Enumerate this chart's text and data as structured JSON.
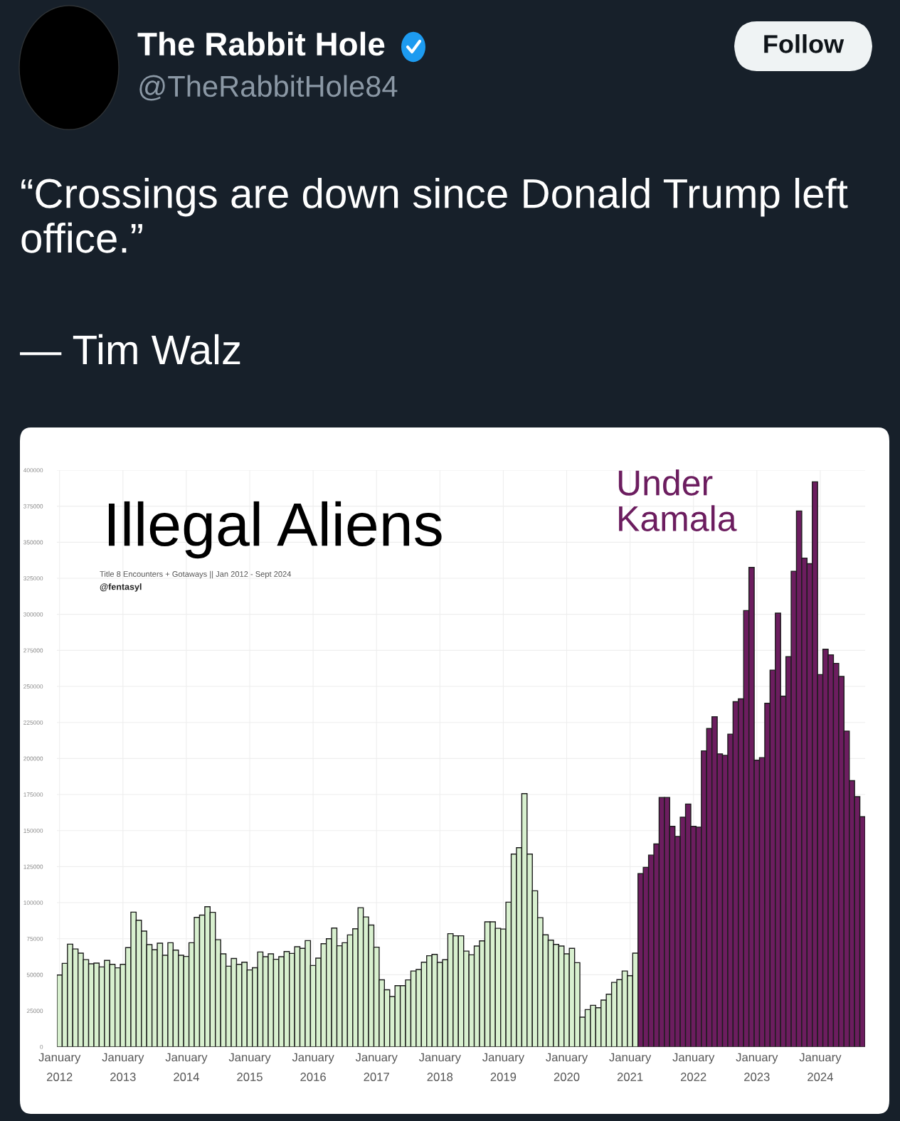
{
  "chart_data": {
    "type": "bar",
    "title": "Illegal Aliens",
    "subtitle": "Title 8 Encounters + Gotaways || Jan 2012 - Sept 2024",
    "annotations": [
      "“Crossings are down since Donald Trump left office.”",
      "— Tim Walz",
      "@fentasyl",
      "Under\nKamala",
      "The Rabbit Hole",
      "@TheRabbitHole84",
      "Follow"
    ],
    "categories": [
      "January\n2012",
      null,
      null,
      null,
      null,
      null,
      null,
      null,
      null,
      null,
      null,
      null,
      "January\n2013",
      null,
      null,
      null,
      null,
      null,
      null,
      null,
      null,
      null,
      null,
      null,
      "January\n2014",
      null,
      null,
      null,
      null,
      null,
      null,
      null,
      null,
      null,
      null,
      null,
      "January\n2015",
      null,
      null,
      null,
      null,
      null,
      null,
      null,
      null,
      null,
      null,
      null,
      "January\n2016",
      null,
      null,
      null,
      null,
      null,
      null,
      null,
      null,
      null,
      null,
      null,
      "January\n2017",
      null,
      null,
      null,
      null,
      null,
      null,
      null,
      null,
      null,
      null,
      null,
      "January\n2018",
      null,
      null,
      null,
      null,
      null,
      null,
      null,
      null,
      null,
      null,
      null,
      "January\n2019",
      null,
      null,
      null,
      null,
      null,
      null,
      null,
      null,
      null,
      null,
      null,
      "January\n2020",
      null,
      null,
      null,
      null,
      null,
      null,
      null,
      null,
      null,
      null,
      null,
      "January\n2021",
      null,
      null,
      null,
      null,
      null,
      null,
      null,
      null,
      null,
      null,
      null,
      "January\n2022",
      null,
      null,
      null,
      null,
      null,
      null,
      null,
      null,
      null,
      null,
      null,
      "January\n2023",
      null,
      null,
      null,
      null,
      null,
      null,
      null,
      null,
      null,
      null,
      null,
      "January\n2024",
      null,
      null,
      null,
      null,
      null,
      null,
      null,
      null
    ],
    "series": [
      {
        "color": "#d8f0cf",
        "values": [
          49800,
          57900,
          71200,
          67900,
          65000,
          60500,
          57600,
          58100,
          55400,
          59900,
          57200,
          54800,
          57200,
          68800,
          93400,
          87800,
          80300,
          70900,
          67300,
          71900,
          63500,
          72200,
          67100,
          63500,
          62700,
          72200,
          89800,
          91400,
          97200,
          93300,
          74300,
          64500,
          55900,
          61300,
          57200,
          58700,
          53300,
          54900,
          65800,
          62500,
          64500,
          60700,
          62500,
          66100,
          64800,
          69400,
          68300,
          73700,
          56400,
          61500,
          71500,
          75000,
          82400,
          70100,
          72200,
          77600,
          81900,
          96500,
          90100,
          84500,
          69100,
          46500,
          39600,
          34900,
          42400,
          42400,
          46400,
          52600,
          53600,
          58700,
          63200,
          64100,
          58600,
          60400,
          78500,
          77000,
          77000,
          66400,
          63800,
          69900,
          73500,
          86700,
          86700,
          82200,
          81700,
          100300,
          133700,
          138100,
          175600,
          133700,
          108200,
          89600,
          77700,
          74000,
          71000,
          69900,
          64500,
          68300,
          58400,
          20600,
          25800,
          28800,
          27100,
          32400,
          36500,
          44700,
          46600,
          52600,
          49300,
          65000,
          null,
          null,
          null,
          null,
          null,
          null,
          null,
          null,
          null,
          null,
          null,
          null,
          null,
          null,
          null,
          null,
          null,
          null,
          null,
          null,
          null,
          null,
          null,
          null,
          null,
          null,
          null,
          null,
          null,
          null,
          null,
          null,
          null,
          null,
          null,
          null,
          null,
          null,
          null,
          null,
          null,
          null,
          null
        ]
      },
      {
        "color": "#6c1d5f",
        "values": [
          null,
          null,
          null,
          null,
          null,
          null,
          null,
          null,
          null,
          null,
          null,
          null,
          null,
          null,
          null,
          null,
          null,
          null,
          null,
          null,
          null,
          null,
          null,
          null,
          null,
          null,
          null,
          null,
          null,
          null,
          null,
          null,
          null,
          null,
          null,
          null,
          null,
          null,
          null,
          null,
          null,
          null,
          null,
          null,
          null,
          null,
          null,
          null,
          null,
          null,
          null,
          null,
          null,
          null,
          null,
          null,
          null,
          null,
          null,
          null,
          null,
          null,
          null,
          null,
          null,
          null,
          null,
          null,
          null,
          null,
          null,
          null,
          null,
          null,
          null,
          null,
          null,
          null,
          null,
          null,
          null,
          null,
          null,
          null,
          null,
          null,
          null,
          null,
          null,
          null,
          null,
          null,
          null,
          null,
          null,
          null,
          null,
          null,
          null,
          null,
          null,
          null,
          null,
          null,
          null,
          null,
          null,
          null,
          null,
          null,
          120100,
          124500,
          133000,
          140700,
          173000,
          173000,
          152900,
          145900,
          159300,
          168400,
          152900,
          152400,
          205300,
          220800,
          229000,
          203200,
          202200,
          216900,
          239400,
          241400,
          302600,
          332500,
          198800,
          200600,
          238300,
          261300,
          300800,
          243200,
          270600,
          329900,
          371700,
          339000,
          335100,
          391900,
          258200,
          275800,
          271900,
          266000,
          256900,
          219000,
          184600,
          173500,
          159600
        ]
      }
    ],
    "ylim": [
      0,
      400000
    ],
    "yticks": [
      0,
      25000,
      50000,
      75000,
      100000,
      125000,
      150000,
      175000,
      200000,
      225000,
      250000,
      275000,
      300000,
      325000,
      350000,
      375000,
      400000
    ],
    "grid": true
  }
}
